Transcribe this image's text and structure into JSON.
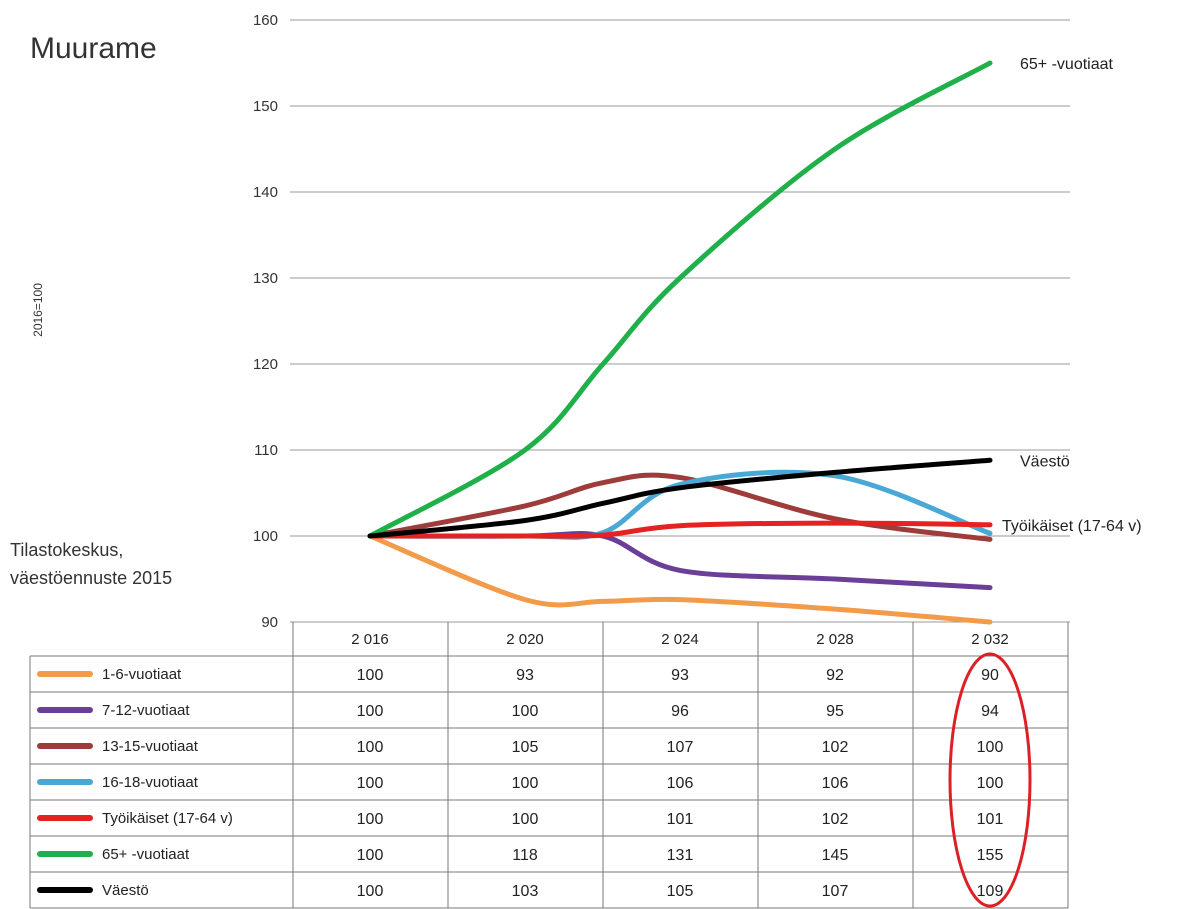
{
  "chart_data": {
    "type": "line",
    "title": "Muurame",
    "ylabel": "2016=100",
    "ylim": [
      90,
      160
    ],
    "yticks": [
      90,
      100,
      110,
      120,
      130,
      140,
      150,
      160
    ],
    "grid": true,
    "x": [
      "2 016",
      "2 020",
      "2 024",
      "2 028",
      "2 032"
    ],
    "source_note": [
      "Tilastokeskus,",
      "väestöennuste 2015"
    ],
    "series": [
      {
        "name": "1-6-vuotiaat",
        "color": "#f29b4a",
        "values": [
          100,
          93,
          93,
          92,
          90
        ],
        "curve": [
          100,
          92.6,
          92.4,
          92.6,
          91.5,
          90
        ],
        "end_label": ""
      },
      {
        "name": "7-12-vuotiaat",
        "color": "#6b3e98",
        "values": [
          100,
          100,
          96,
          95,
          94
        ],
        "curve": [
          100,
          100,
          100,
          96,
          95,
          94
        ],
        "end_label": ""
      },
      {
        "name": "13-15-vuotiaat",
        "color": "#9e3b3b",
        "values": [
          100,
          105,
          107,
          102,
          100
        ],
        "curve": [
          100,
          103.5,
          106.2,
          106.8,
          102,
          99.6
        ],
        "end_label": ""
      },
      {
        "name": "16-18-vuotiaat",
        "color": "#4aa8d6",
        "values": [
          100,
          100,
          106,
          106,
          100
        ],
        "curve": [
          100,
          100,
          100.4,
          106,
          107,
          100.3
        ],
        "end_label": ""
      },
      {
        "name": "Työikäiset (17-64 v)",
        "color": "#e52222",
        "values": [
          100,
          100,
          101,
          102,
          101
        ],
        "curve": [
          100,
          100,
          100.1,
          101.2,
          101.5,
          101.3
        ],
        "end_label": "Työikäiset (17-64 v)"
      },
      {
        "name": "65+ -vuotiaat",
        "color": "#1fb04a",
        "values": [
          100,
          118,
          131,
          145,
          155
        ],
        "curve": [
          100,
          110,
          120,
          130,
          145,
          155
        ],
        "end_label": "65+ -vuotiaat"
      },
      {
        "name": "Väestö",
        "color": "#000000",
        "values": [
          100,
          103,
          105,
          107,
          109
        ],
        "curve": [
          100,
          101.8,
          103.8,
          105.6,
          107.4,
          108.8
        ],
        "end_label": "Väestö"
      }
    ],
    "highlight": {
      "column": "2 032",
      "color": "#dd1f26",
      "shape": "ellipse"
    }
  }
}
